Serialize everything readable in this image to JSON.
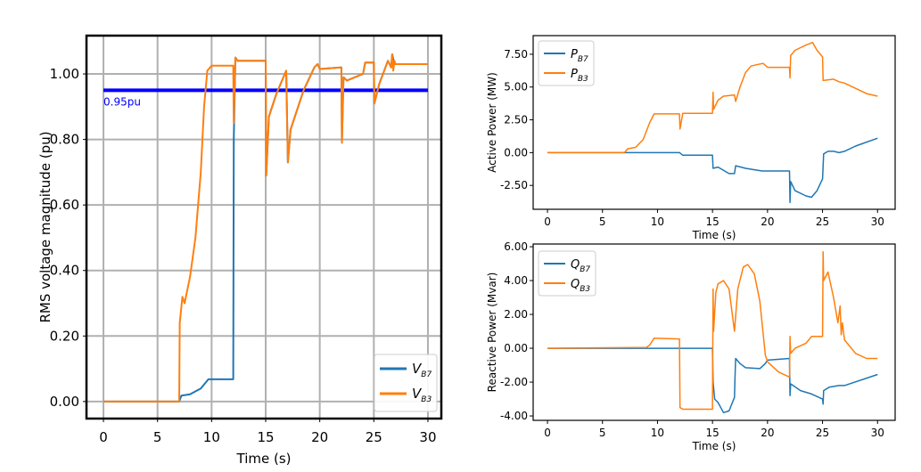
{
  "chart_data": [
    {
      "id": "voltage",
      "type": "line",
      "title": "",
      "xlabel": "Time (s)",
      "ylabel": "RMS voltage magnitude (pu)",
      "xlim": [
        -1.57,
        31.24
      ],
      "ylim": [
        -0.052,
        1.117
      ],
      "xticks": [
        0,
        5,
        10,
        15,
        20,
        25,
        30
      ],
      "xtick_labels": [
        "0",
        "5",
        "10",
        "15",
        "20",
        "25",
        "30"
      ],
      "yticks": [
        0,
        0.2,
        0.4,
        0.6,
        0.8,
        1.0
      ],
      "ytick_labels": [
        "0.00",
        "0.20",
        "0.40",
        "0.60",
        "0.80",
        "1.00"
      ],
      "grid": true,
      "legend_position": "lower-right",
      "reference_line": {
        "y": 0.95,
        "label": "0.95pu",
        "color": "#0000ff"
      },
      "series": [
        {
          "name": "V",
          "sub": "B7",
          "color": "#1f77b4",
          "points": [
            [
              0,
              0
            ],
            [
              7,
              0
            ],
            [
              7.2,
              0.018
            ],
            [
              8,
              0.022
            ],
            [
              9,
              0.04
            ],
            [
              9.7,
              0.068
            ],
            [
              12,
              0.068
            ],
            [
              12.05,
              0.8
            ],
            [
              12.2,
              1.05
            ],
            [
              12.4,
              1.04
            ],
            [
              15,
              1.04
            ],
            [
              15.05,
              0.69
            ],
            [
              15.3,
              0.87
            ],
            [
              16,
              0.94
            ],
            [
              16.9,
              1.01
            ],
            [
              17.05,
              0.73
            ],
            [
              17.3,
              0.83
            ],
            [
              18.5,
              0.95
            ],
            [
              19.5,
              1.02
            ],
            [
              19.8,
              1.03
            ],
            [
              20,
              1.015
            ],
            [
              22,
              1.02
            ],
            [
              22.05,
              0.79
            ],
            [
              22.2,
              0.99
            ],
            [
              22.5,
              0.98
            ],
            [
              24,
              1.0
            ],
            [
              24.2,
              1.035
            ],
            [
              25,
              1.035
            ],
            [
              25.05,
              0.91
            ],
            [
              25.5,
              0.97
            ],
            [
              26.3,
              1.04
            ],
            [
              26.6,
              1.02
            ],
            [
              26.7,
              1.06
            ],
            [
              26.9,
              1.03
            ],
            [
              30,
              1.03
            ]
          ]
        },
        {
          "name": "V",
          "sub": "B3",
          "color": "#ff7f0e",
          "points": [
            [
              0,
              0
            ],
            [
              7,
              0
            ],
            [
              7.05,
              0.24
            ],
            [
              7.3,
              0.32
            ],
            [
              7.5,
              0.3
            ],
            [
              8,
              0.38
            ],
            [
              8.5,
              0.5
            ],
            [
              9,
              0.7
            ],
            [
              9.3,
              0.9
            ],
            [
              9.6,
              1.01
            ],
            [
              10,
              1.025
            ],
            [
              12,
              1.025
            ],
            [
              12.05,
              0.85
            ],
            [
              12.2,
              1.05
            ],
            [
              12.4,
              1.04
            ],
            [
              15,
              1.04
            ],
            [
              15.05,
              0.69
            ],
            [
              15.3,
              0.87
            ],
            [
              16,
              0.94
            ],
            [
              16.9,
              1.01
            ],
            [
              17.05,
              0.73
            ],
            [
              17.3,
              0.83
            ],
            [
              18.5,
              0.95
            ],
            [
              19.5,
              1.02
            ],
            [
              19.8,
              1.03
            ],
            [
              20,
              1.015
            ],
            [
              22,
              1.02
            ],
            [
              22.05,
              0.79
            ],
            [
              22.2,
              0.99
            ],
            [
              22.5,
              0.98
            ],
            [
              24,
              1.0
            ],
            [
              24.2,
              1.035
            ],
            [
              25,
              1.035
            ],
            [
              25.05,
              0.91
            ],
            [
              25.5,
              0.97
            ],
            [
              26.3,
              1.04
            ],
            [
              26.6,
              1.02
            ],
            [
              26.7,
              1.06
            ],
            [
              26.8,
              1.01
            ],
            [
              26.9,
              1.04
            ],
            [
              27,
              1.03
            ],
            [
              30,
              1.03
            ]
          ]
        }
      ]
    },
    {
      "id": "active",
      "type": "line",
      "title": "",
      "xlabel": "Time (s)",
      "ylabel": "Active Power (MW)",
      "xlim": [
        -1.3,
        31.6
      ],
      "ylim": [
        -4.32,
        8.92
      ],
      "xticks": [
        0,
        5,
        10,
        15,
        20,
        25,
        30
      ],
      "xtick_labels": [
        "0",
        "5",
        "10",
        "15",
        "20",
        "25",
        "30"
      ],
      "yticks": [
        -2.5,
        0,
        2.5,
        5,
        7.5
      ],
      "ytick_labels": [
        "-2.50",
        "0.00",
        "2.50",
        "5.00",
        "7.50"
      ],
      "grid": false,
      "legend_position": "upper-left",
      "series": [
        {
          "name": "P",
          "sub": "B7",
          "color": "#1f77b4",
          "points": [
            [
              0,
              0
            ],
            [
              12,
              0
            ],
            [
              12.3,
              -0.2
            ],
            [
              15,
              -0.2
            ],
            [
              15.05,
              -1.2
            ],
            [
              15.5,
              -1.1
            ],
            [
              16.5,
              -1.6
            ],
            [
              17,
              -1.6
            ],
            [
              17.1,
              -1.0
            ],
            [
              18,
              -1.2
            ],
            [
              19.5,
              -1.4
            ],
            [
              22,
              -1.4
            ],
            [
              22.05,
              -3.8
            ],
            [
              22.1,
              -2.2
            ],
            [
              22.5,
              -2.9
            ],
            [
              23.5,
              -3.3
            ],
            [
              24,
              -3.4
            ],
            [
              24.5,
              -2.9
            ],
            [
              25,
              -2.0
            ],
            [
              25.1,
              -0.1
            ],
            [
              25.5,
              0.1
            ],
            [
              26,
              0.1
            ],
            [
              26.5,
              0.0
            ],
            [
              27,
              0.1
            ],
            [
              28,
              0.5
            ],
            [
              30,
              1.1
            ]
          ]
        },
        {
          "name": "P",
          "sub": "B3",
          "color": "#ff7f0e",
          "points": [
            [
              0,
              0
            ],
            [
              7,
              0
            ],
            [
              7.3,
              0.3
            ],
            [
              8,
              0.4
            ],
            [
              8.7,
              1.0
            ],
            [
              9.3,
              2.3
            ],
            [
              9.7,
              2.95
            ],
            [
              12,
              2.95
            ],
            [
              12.05,
              1.8
            ],
            [
              12.3,
              3.0
            ],
            [
              15,
              3.0
            ],
            [
              15.05,
              4.6
            ],
            [
              15.1,
              3.3
            ],
            [
              15.5,
              4.0
            ],
            [
              16,
              4.3
            ],
            [
              17,
              4.4
            ],
            [
              17.1,
              3.9
            ],
            [
              17.5,
              5.0
            ],
            [
              18,
              6.1
            ],
            [
              18.5,
              6.6
            ],
            [
              19,
              6.7
            ],
            [
              19.6,
              6.8
            ],
            [
              20,
              6.5
            ],
            [
              22,
              6.5
            ],
            [
              22.05,
              5.7
            ],
            [
              22.1,
              7.4
            ],
            [
              22.5,
              7.8
            ],
            [
              23.5,
              8.2
            ],
            [
              24.1,
              8.4
            ],
            [
              24.5,
              7.8
            ],
            [
              25,
              7.3
            ],
            [
              25.05,
              5.5
            ],
            [
              26,
              5.6
            ],
            [
              26.5,
              5.4
            ],
            [
              27,
              5.3
            ],
            [
              28,
              4.9
            ],
            [
              29,
              4.5
            ],
            [
              30,
              4.3
            ]
          ]
        }
      ]
    },
    {
      "id": "reactive",
      "type": "line",
      "title": "",
      "xlabel": "Time (s)",
      "ylabel": "Reactive Power (Mvar)",
      "xlim": [
        -1.3,
        31.6
      ],
      "ylim": [
        -4.26,
        6.16
      ],
      "xticks": [
        0,
        5,
        10,
        15,
        20,
        25,
        30
      ],
      "xtick_labels": [
        "0",
        "5",
        "10",
        "15",
        "20",
        "25",
        "30"
      ],
      "yticks": [
        -4,
        -2,
        0,
        2,
        4,
        6
      ],
      "ytick_labels": [
        "-4.00",
        "-2.00",
        "0.00",
        "2.00",
        "4.00",
        "6.00"
      ],
      "grid": false,
      "legend_position": "upper-left",
      "series": [
        {
          "name": "Q",
          "sub": "B7",
          "color": "#1f77b4",
          "points": [
            [
              0,
              0
            ],
            [
              15,
              0
            ],
            [
              15.05,
              -2.0
            ],
            [
              15.2,
              -3.0
            ],
            [
              15.5,
              -3.2
            ],
            [
              16,
              -3.8
            ],
            [
              16.5,
              -3.7
            ],
            [
              17,
              -2.9
            ],
            [
              17.05,
              -1.7
            ],
            [
              17.1,
              -0.6
            ],
            [
              17.5,
              -0.9
            ],
            [
              18,
              -1.15
            ],
            [
              19.3,
              -1.2
            ],
            [
              19.8,
              -0.9
            ],
            [
              20,
              -0.7
            ],
            [
              22,
              -0.6
            ],
            [
              22.05,
              -2.8
            ],
            [
              22.1,
              -2.1
            ],
            [
              23,
              -2.5
            ],
            [
              24,
              -2.7
            ],
            [
              25,
              -3.0
            ],
            [
              25.05,
              -3.3
            ],
            [
              25.1,
              -2.5
            ],
            [
              25.6,
              -2.3
            ],
            [
              26.5,
              -2.2
            ],
            [
              27,
              -2.2
            ],
            [
              30,
              -1.55
            ]
          ]
        },
        {
          "name": "Q",
          "sub": "B3",
          "color": "#ff7f0e",
          "points": [
            [
              0,
              0
            ],
            [
              9,
              0.05
            ],
            [
              9.3,
              0.2
            ],
            [
              9.7,
              0.6
            ],
            [
              12,
              0.55
            ],
            [
              12.05,
              -3.5
            ],
            [
              12.3,
              -3.6
            ],
            [
              15,
              -3.6
            ],
            [
              15.05,
              3.5
            ],
            [
              15.1,
              1.0
            ],
            [
              15.3,
              3.3
            ],
            [
              15.5,
              3.8
            ],
            [
              16,
              4.0
            ],
            [
              16.5,
              3.5
            ],
            [
              17,
              1.0
            ],
            [
              17.3,
              3.5
            ],
            [
              17.8,
              4.8
            ],
            [
              18.2,
              4.95
            ],
            [
              18.8,
              4.4
            ],
            [
              19.3,
              2.8
            ],
            [
              19.8,
              -0.4
            ],
            [
              20,
              -0.8
            ],
            [
              21,
              -1.4
            ],
            [
              22,
              -1.7
            ],
            [
              22.05,
              0.7
            ],
            [
              22.1,
              -0.3
            ],
            [
              22.5,
              0.0
            ],
            [
              23.5,
              0.3
            ],
            [
              24,
              0.7
            ],
            [
              25,
              0.7
            ],
            [
              25.05,
              5.7
            ],
            [
              25.1,
              4.0
            ],
            [
              25.5,
              4.5
            ],
            [
              26,
              3.0
            ],
            [
              26.4,
              1.5
            ],
            [
              26.6,
              2.5
            ],
            [
              26.7,
              0.8
            ],
            [
              26.8,
              1.5
            ],
            [
              27,
              0.5
            ],
            [
              28,
              -0.3
            ],
            [
              29,
              -0.6
            ],
            [
              30,
              -0.6
            ]
          ]
        }
      ]
    }
  ]
}
